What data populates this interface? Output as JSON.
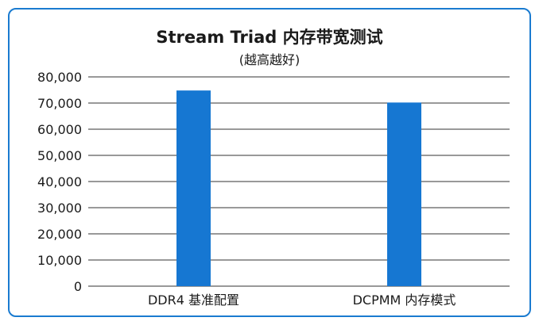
{
  "chart_data": {
    "type": "bar",
    "title": "Stream Triad 内存带宽测试",
    "subtitle": "(越高越好)",
    "categories": [
      "DDR4 基准配置",
      "DCPMM 内存模式"
    ],
    "values": [
      74800,
      70200
    ],
    "yticks": [
      "0",
      "10,000",
      "20,000",
      "30,000",
      "40,000",
      "50,000",
      "60,000",
      "70,000",
      "80,000"
    ],
    "ylim": [
      0,
      80000
    ],
    "grid": true,
    "bar_color": "#1677d2",
    "frame_color": "#1a7bd0"
  }
}
